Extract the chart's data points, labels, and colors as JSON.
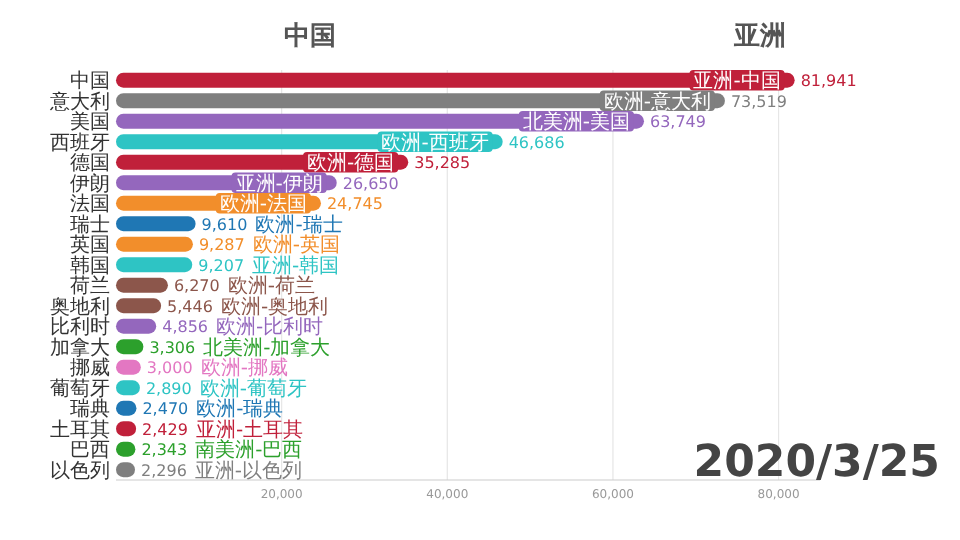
{
  "chart_data": {
    "type": "bar",
    "orientation": "horizontal",
    "title": "中国",
    "subtitle": "亚洲",
    "categories": [
      "中国",
      "意大利",
      "美国",
      "西班牙",
      "德国",
      "伊朗",
      "法国",
      "瑞士",
      "英国",
      "韩国",
      "荷兰",
      "奥地利",
      "比利时",
      "加拿大",
      "挪威",
      "葡萄牙",
      "瑞典",
      "土耳其",
      "巴西",
      "以色列"
    ],
    "values": [
      81941,
      73519,
      63749,
      46686,
      35285,
      26650,
      24745,
      9610,
      9287,
      9207,
      6270,
      5446,
      4856,
      3306,
      3000,
      2890,
      2470,
      2429,
      2343,
      2296
    ],
    "colors": [
      "#c0203a",
      "#7f7f7f",
      "#9467bd",
      "#2ec4c4",
      "#c0203a",
      "#9467bd",
      "#f28e2b",
      "#1f77b4",
      "#f28e2b",
      "#2ec4c4",
      "#8c564b",
      "#8c564b",
      "#9467bd",
      "#2ca02c",
      "#e377c2",
      "#2ec4c4",
      "#1f77b4",
      "#c0203a",
      "#2ca02c",
      "#7f7f7f"
    ],
    "value_labels": [
      "81,941",
      "73,519",
      "63,749",
      "46,686",
      "35,285",
      "26,650",
      "24,745",
      "9,610",
      "9,287",
      "9,207",
      "6,270",
      "5,446",
      "4,856",
      "3,306",
      "3,000",
      "2,890",
      "2,470",
      "2,429",
      "2,343",
      "2,296"
    ],
    "xlim": [
      0,
      85000
    ],
    "xticks": [
      {
        "value": 20000,
        "label": "20,000"
      },
      {
        "value": 40000,
        "label": "40,000"
      },
      {
        "value": 60000,
        "label": "60,000"
      },
      {
        "value": 80000,
        "label": "80,000"
      }
    ],
    "grid": "x",
    "annotations": [
      {
        "text": "亚洲-中国",
        "x": 81941,
        "y": "中国"
      },
      {
        "text": "欧洲-意大利",
        "x": 73519,
        "y": "意大利"
      },
      {
        "text": "北美洲-美国",
        "x": 63749,
        "y": "美国"
      },
      {
        "text": "欧洲-西班牙",
        "x": 46686,
        "y": "西班牙"
      },
      {
        "text": "欧洲-德国",
        "x": 35285,
        "y": "德国"
      },
      {
        "text": "亚洲-伊朗",
        "x": 26650,
        "y": "伊朗"
      },
      {
        "text": "欧洲-法国",
        "x": 24745,
        "y": "法国"
      },
      {
        "text": "欧洲-瑞士",
        "x": 9610,
        "y": "瑞士"
      },
      {
        "text": "欧洲-英国",
        "x": 9287,
        "y": "英国"
      },
      {
        "text": "亚洲-韩国",
        "x": 9207,
        "y": "韩国"
      },
      {
        "text": "欧洲-荷兰",
        "x": 6270,
        "y": "荷兰"
      },
      {
        "text": "欧洲-奥地利",
        "x": 5446,
        "y": "奥地利"
      },
      {
        "text": "欧洲-比利时",
        "x": 4856,
        "y": "比利时"
      },
      {
        "text": "北美洲-加拿大",
        "x": 3306,
        "y": "加拿大"
      },
      {
        "text": "欧洲-挪威",
        "x": 3000,
        "y": "挪威"
      },
      {
        "text": "欧洲-葡萄牙",
        "x": 2890,
        "y": "葡萄牙"
      },
      {
        "text": "欧洲-瑞典",
        "x": 2470,
        "y": "瑞典"
      },
      {
        "text": "亚洲-土耳其",
        "x": 2429,
        "y": "土耳其"
      },
      {
        "text": "南美洲-巴西",
        "x": 2343,
        "y": "巴西"
      },
      {
        "text": "亚洲-以色列",
        "x": 2296,
        "y": "以色列"
      },
      "2020/3/25"
    ]
  }
}
